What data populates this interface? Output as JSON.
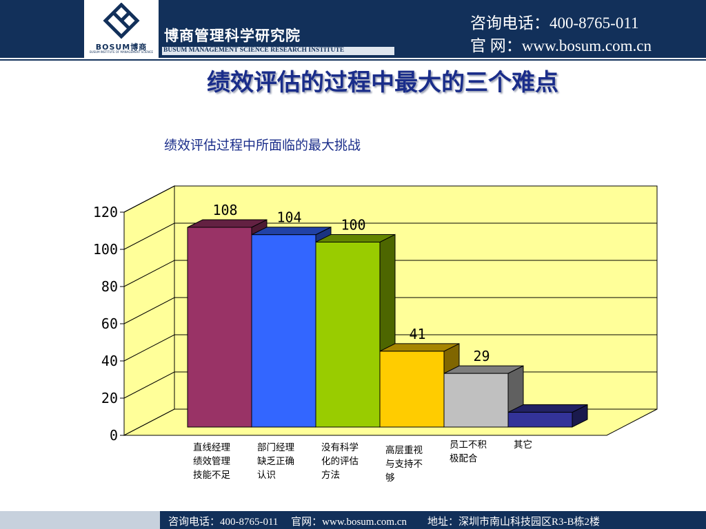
{
  "header": {
    "org_name_cn": "博商管理科学研究院",
    "org_name_en": "BUSUM MANAGEMENT SCIENCE RESEARCH INSTITUTE",
    "logo_text": "BOSUM博商",
    "logo_subtext": "BUSUM INSTITUTE OF MANAGEMENT SCIENCE",
    "phone": "咨询电话：400-8765-011",
    "website": "官 网：www.bosum.com.cn"
  },
  "slide_title": "绩效评估的过程中最大的三个难点",
  "footer": {
    "text": "咨询电话：400-8765-011　 官网：www.bosum.com.cn　　地址：深圳市南山科技园区R3-B栋2楼"
  },
  "colors": {
    "brand_navy": "#12305a",
    "plot_background": "#ffff99",
    "title_blue": "#1a2d8a"
  },
  "chart_data": {
    "type": "bar",
    "title": "绩效评估过程中所面临的最大挑战",
    "categories": [
      "直线经理绩效管理技能不足",
      "部门经理缺乏正确认识",
      "没有科学化的评估方法",
      "高层重视与支持不够",
      "员工不积极配合",
      "其它"
    ],
    "category_lines": [
      [
        "直线经理",
        "绩效管理",
        "技能不足"
      ],
      [
        "部门经理",
        "缺乏正确",
        "认识"
      ],
      [
        "没有科学",
        "化的评估",
        "方法"
      ],
      [
        "高层重视",
        "与支持不",
        "够"
      ],
      [
        "员工不积",
        "极配合"
      ],
      [
        "其它"
      ]
    ],
    "values": [
      108,
      104,
      100,
      41,
      29,
      8
    ],
    "data_labels": [
      "108",
      "104",
      "100",
      "41",
      "29",
      ""
    ],
    "bar_colors": [
      "#993366",
      "#3366ff",
      "#99cc00",
      "#ffcc00",
      "#c0c0c0",
      "#333399"
    ],
    "ylim": [
      0,
      120
    ],
    "yticks": [
      "0",
      "20",
      "40",
      "60",
      "80",
      "100",
      "120"
    ],
    "grid": true,
    "style": "3d-column"
  }
}
